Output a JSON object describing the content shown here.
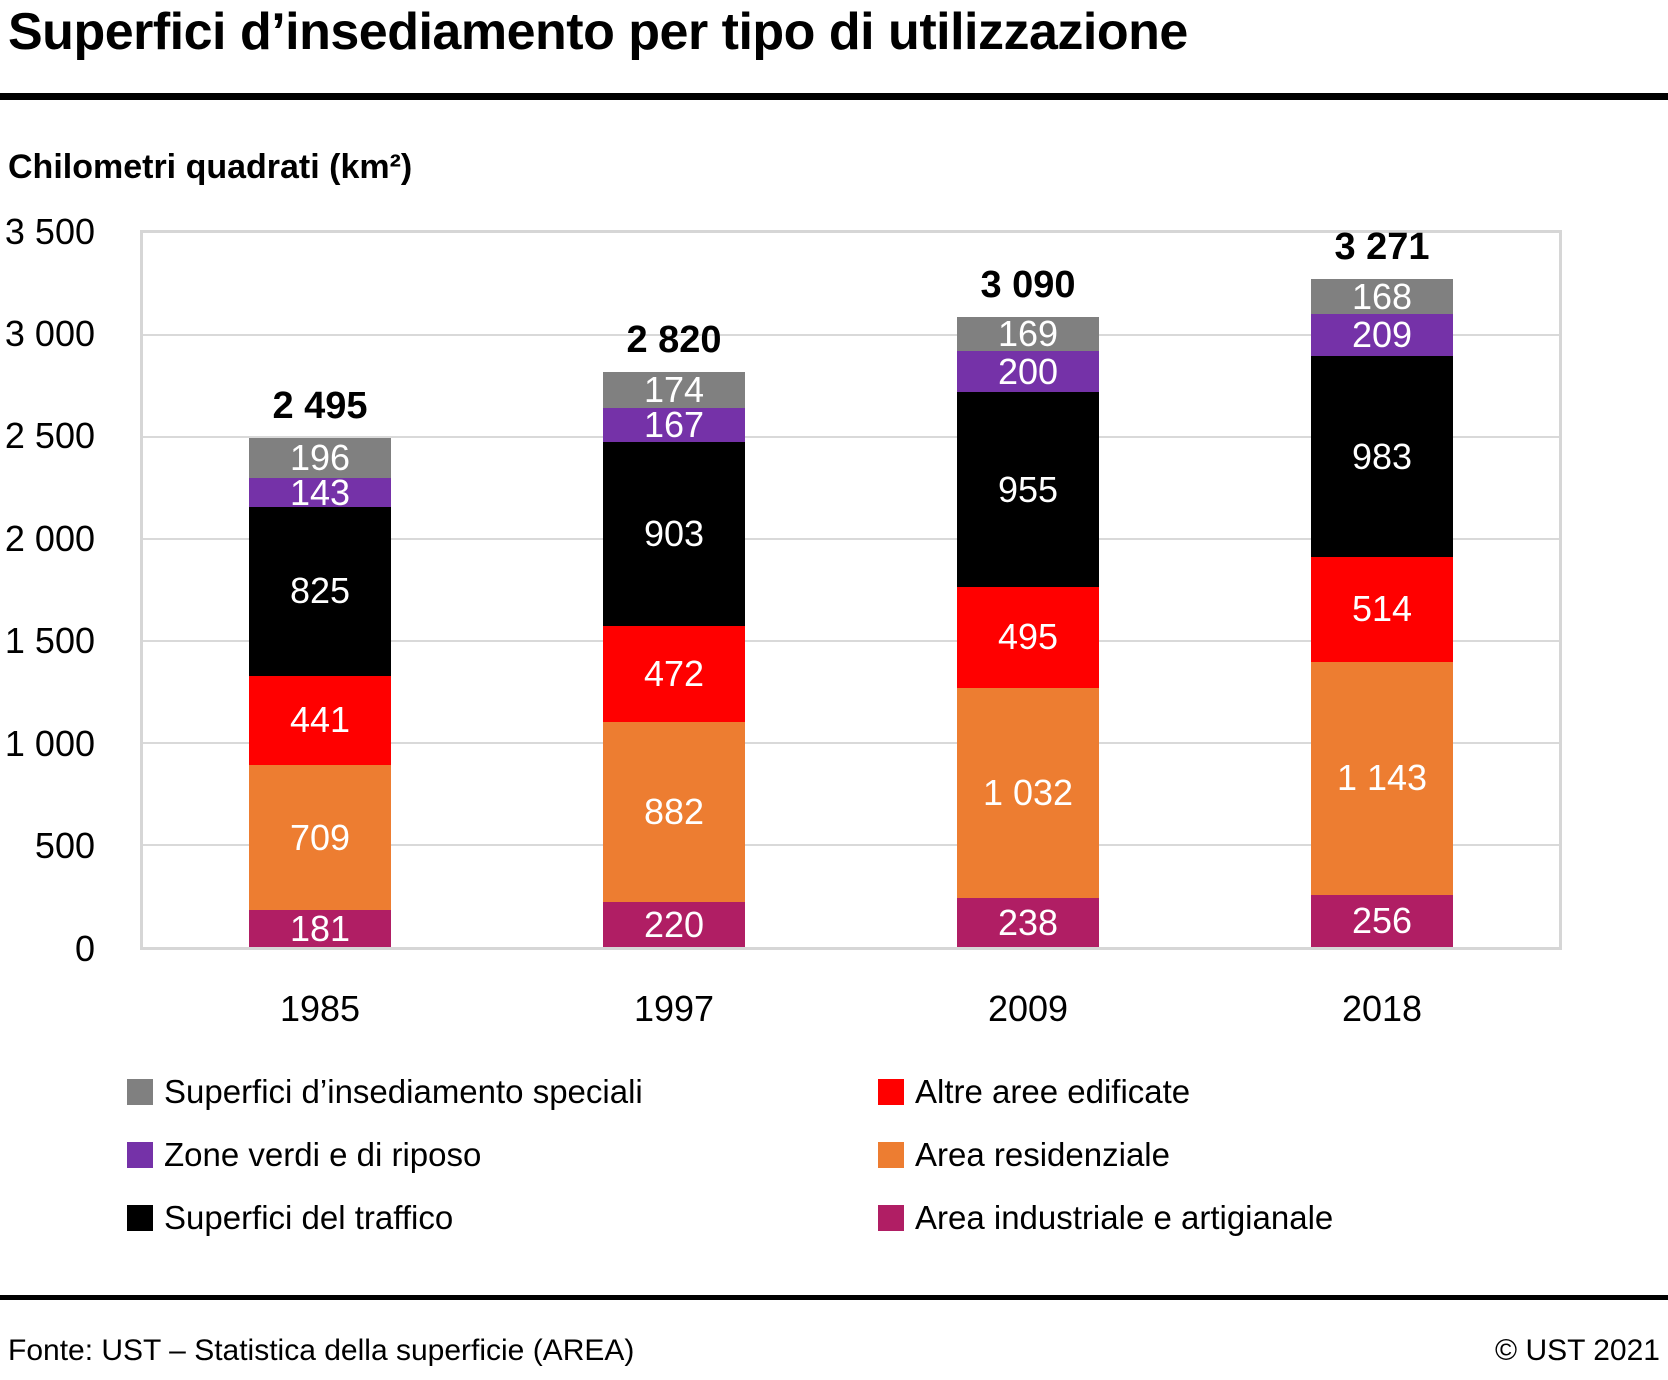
{
  "header": {
    "title": "Superfici d’insediamento per tipo di utilizzazione"
  },
  "chart_data": {
    "type": "bar",
    "stacked": true,
    "title": "Superfici d’insediamento per tipo di utilizzazione",
    "unit_label": "Chilometri quadrati (km²)",
    "categories": [
      "1985",
      "1997",
      "2009",
      "2018"
    ],
    "series": [
      {
        "name": "Area industriale e artigianale",
        "color": "#b01e64",
        "values": [
          181,
          220,
          238,
          256
        ]
      },
      {
        "name": "Area residenziale",
        "color": "#ed7d31",
        "values": [
          709,
          882,
          1032,
          1143
        ]
      },
      {
        "name": "Altre aree edificate",
        "color": "#ff0000",
        "values": [
          441,
          472,
          495,
          514
        ]
      },
      {
        "name": "Superfici del traffico",
        "color": "#000000",
        "values": [
          825,
          903,
          955,
          983
        ]
      },
      {
        "name": "Zone verdi e di riposo",
        "color": "#7532a8",
        "values": [
          143,
          167,
          200,
          209
        ]
      },
      {
        "name": "Superfici d’insediamento speciali",
        "color": "#808080",
        "values": [
          196,
          174,
          169,
          168
        ]
      }
    ],
    "totals": [
      2495,
      2820,
      3090,
      3271
    ],
    "ylim": [
      0,
      3500
    ],
    "yticks": [
      3500,
      3000,
      2500,
      2000,
      1500,
      1000,
      500,
      0
    ],
    "grid": "horizontal",
    "legend_position": "bottom-two-columns",
    "bar_value_labels": "inside-center-white"
  },
  "legend": {
    "columns": [
      [
        {
          "label": "Superfici d’insediamento speciali",
          "color": "#808080"
        },
        {
          "label": "Zone verdi e di riposo",
          "color": "#7532a8"
        },
        {
          "label": "Superfici del traffico",
          "color": "#000000"
        }
      ],
      [
        {
          "label": "Altre aree edificate",
          "color": "#ff0000"
        },
        {
          "label": "Area residenziale",
          "color": "#ed7d31"
        },
        {
          "label": "Area industriale e artigianale",
          "color": "#b01e64"
        }
      ]
    ]
  },
  "footer": {
    "source": "Fonte: UST – Statistica della superficie (AREA)",
    "copyright": "© UST 2021"
  }
}
